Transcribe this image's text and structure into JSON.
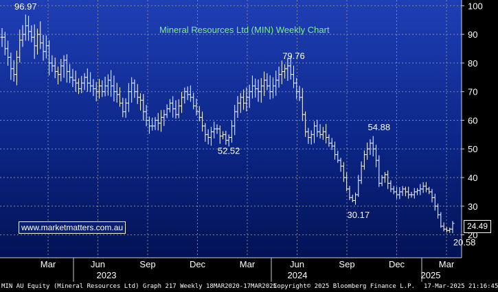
{
  "chart_data": {
    "type": "bar",
    "title": "Mineral Resources Ltd (MIN) Weekly Chart",
    "ylim": [
      12,
      102
    ],
    "y_ticks": [
      20,
      30,
      40,
      50,
      60,
      70,
      80,
      90,
      100
    ],
    "x_ticks": [
      "Mar",
      "Jun",
      "Sep",
      "Dec",
      "Mar",
      "Jun",
      "Sep",
      "Dec",
      "Mar"
    ],
    "years": [
      "2023",
      "2024",
      "2025"
    ],
    "last_price": "24.49",
    "annotations": [
      {
        "label": "96.97",
        "index": 8,
        "value": 96.97,
        "pos": "above"
      },
      {
        "label": "52.52",
        "index": 77,
        "value": 52.52,
        "pos": "below"
      },
      {
        "label": "79.76",
        "index": 99,
        "value": 79.76,
        "pos": "above"
      },
      {
        "label": "30.17",
        "index": 121,
        "value": 30.17,
        "pos": "below"
      },
      {
        "label": "54.88",
        "index": 128,
        "value": 54.88,
        "pos": "above"
      },
      {
        "label": "20.58",
        "index": 157,
        "value": 20.58,
        "pos": "below"
      }
    ],
    "series": [
      {
        "values": [
          89.0,
          85.0,
          82.0,
          78.0,
          76.0,
          82.0,
          88.0,
          90.0,
          93.0,
          91.0,
          89.0,
          86.0,
          90.0,
          87.0,
          84.0,
          86.0,
          80.0,
          79.0,
          77.0,
          76.0,
          79.0,
          81.0,
          77.0,
          75.0,
          74.0,
          73.0,
          71.0,
          73.0,
          75.0,
          73.0,
          72.0,
          71.0,
          70.0,
          72.0,
          70.0,
          72.0,
          74.0,
          72.0,
          70.0,
          69.0,
          66.0,
          63.0,
          66.0,
          70.0,
          73.0,
          70.0,
          68.0,
          67.0,
          63.0,
          60.0,
          58.0,
          58.0,
          60.0,
          59.0,
          61.0,
          62.0,
          64.0,
          66.0,
          64.0,
          62.0,
          65.0,
          68.0,
          70.0,
          69.0,
          68.0,
          65.0,
          63.0,
          61.0,
          58.0,
          55.0,
          54.0,
          56.0,
          57.0,
          57.0,
          54.5,
          55.0,
          53.0,
          54.0,
          58.0,
          63.0,
          66.0,
          68.0,
          66.0,
          68.0,
          70.0,
          72.0,
          71.0,
          70.0,
          72.0,
          74.0,
          72.0,
          70.0,
          72.0,
          74.0,
          76.0,
          77.0,
          78.0,
          79.0,
          76.0,
          73.0,
          70.0,
          68.0,
          62.0,
          56.0,
          54.0,
          55.0,
          58.0,
          56.0,
          55.0,
          56.0,
          54.0,
          52.0,
          51.0,
          48.0,
          46.0,
          44.0,
          40.0,
          36.0,
          33.0,
          32.0,
          34.0,
          39.0,
          44.0,
          48.0,
          50.0,
          52.0,
          50.0,
          46.0,
          38.0,
          40.0,
          41.0,
          38.0,
          36.0,
          35.0,
          34.0,
          35.0,
          36.0,
          35.0,
          34.0,
          34.0,
          35.0,
          35.5,
          36.0,
          37.0,
          36.0,
          35.0,
          33.0,
          30.0,
          27.0,
          23.0,
          22.0,
          21.5,
          22.0,
          24.0
        ]
      }
    ]
  },
  "watermark": "www.marketmatters.com.au",
  "footer": {
    "left": "MIN AU Equity (Mineral Resources Ltd) Graph 217  Weekly 18MAR2020-17MAR2025",
    "center": "Copyright© 2025 Bloomberg Finance L.P.",
    "right": "17-Mar-2025 21:16:45"
  }
}
